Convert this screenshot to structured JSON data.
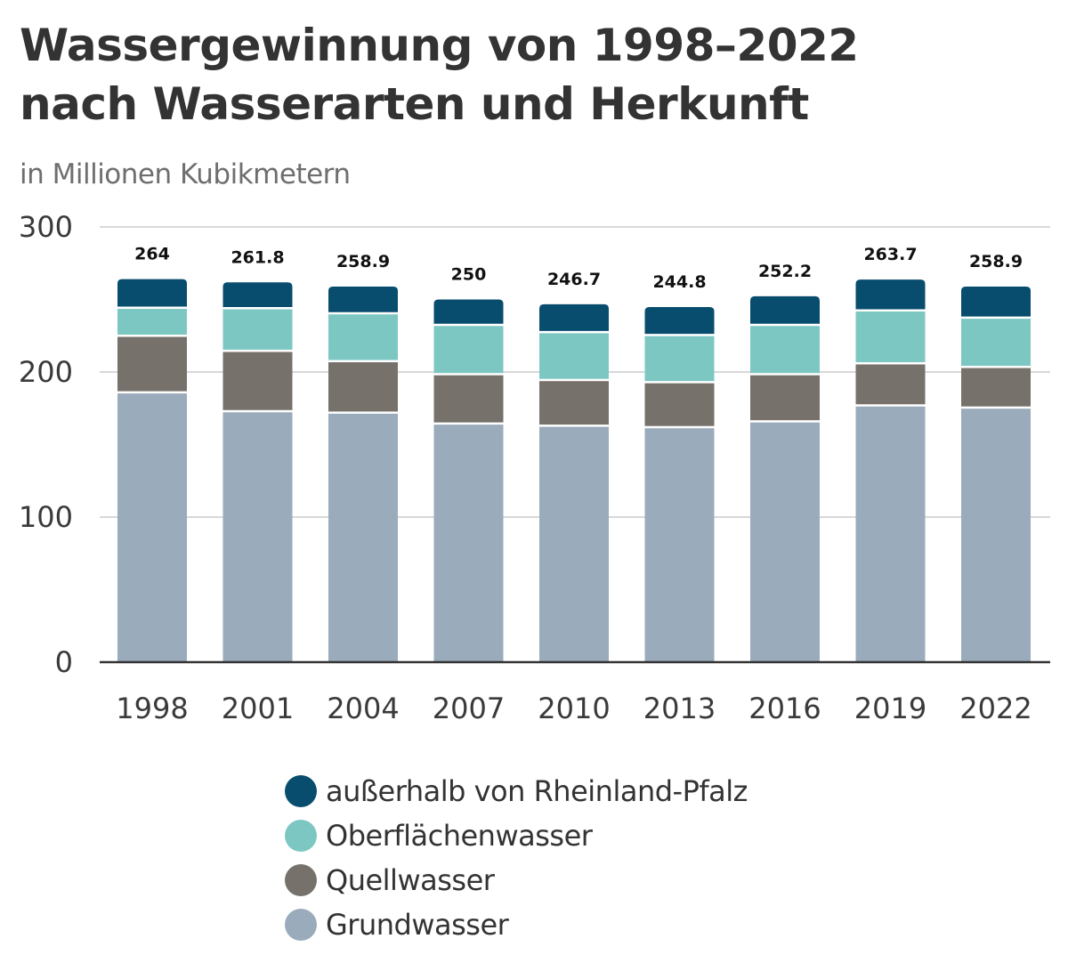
{
  "chart_data": {
    "type": "bar",
    "stacked": true,
    "title": "Wassergewinnung von 1998–2022 nach Wasserarten und Herkunft",
    "title_lines": [
      "Wassergewinnung von 1998–2022",
      "nach Wasserarten und Herkunft"
    ],
    "subtitle": "in Millionen Kubikmetern",
    "xlabel": "",
    "ylabel": "",
    "ylim": [
      0,
      300
    ],
    "yticks": [
      0,
      100,
      200,
      300
    ],
    "grid": true,
    "legend_position": "bottom",
    "categories": [
      "1998",
      "2001",
      "2004",
      "2007",
      "2010",
      "2013",
      "2016",
      "2019",
      "2022"
    ],
    "totals": [
      "264",
      "261.8",
      "258.9",
      "250",
      "246.7",
      "244.8",
      "252.2",
      "263.7",
      "258.9"
    ],
    "series": [
      {
        "name": "Grundwasser",
        "color": "#9aabbb",
        "values": [
          186.0,
          173.0,
          172.0,
          164.5,
          163.0,
          162.0,
          166.0,
          177.0,
          175.5
        ]
      },
      {
        "name": "Quellwasser",
        "color": "#76716b",
        "values": [
          39.0,
          41.6,
          35.5,
          34.0,
          31.5,
          31.0,
          32.5,
          29.0,
          28.0
        ]
      },
      {
        "name": "Oberflächenwasser",
        "color": "#7dc7c3",
        "values": [
          19.3,
          29.4,
          33.0,
          34.0,
          33.0,
          32.5,
          34.0,
          36.5,
          34.0
        ]
      },
      {
        "name": "außerhalb von Rheinland-Pfalz",
        "color": "#084c6e",
        "values": [
          19.7,
          17.8,
          18.4,
          17.5,
          19.2,
          19.3,
          19.7,
          21.2,
          21.4
        ]
      }
    ],
    "legend": [
      {
        "label": "außerhalb von Rheinland-Pfalz",
        "color": "#084c6e"
      },
      {
        "label": "Oberflächenwasser",
        "color": "#7dc7c3"
      },
      {
        "label": "Quellwasser",
        "color": "#76716b"
      },
      {
        "label": "Grundwasser",
        "color": "#9aabbb"
      }
    ]
  }
}
